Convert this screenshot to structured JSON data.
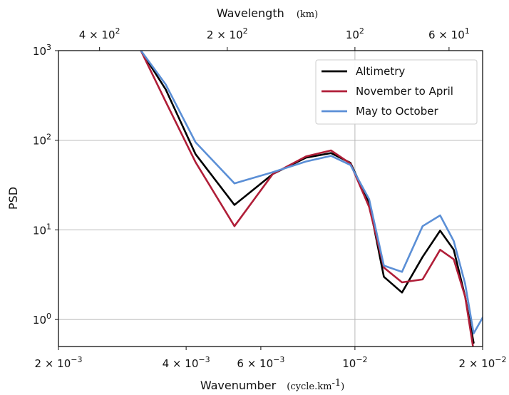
{
  "chart_data": {
    "type": "line",
    "x_scale": "log",
    "y_scale": "log",
    "xlim": [
      0.002,
      0.02
    ],
    "ylim": [
      0.5,
      1000
    ],
    "grid": true,
    "legend_position": "top-right",
    "xlabel": "Wavenumber",
    "xlabel_unit": "(cycle.km",
    "xlabel_unit_sup": "-1",
    "xlabel_unit_end": ")",
    "ylabel": "PSD",
    "top_xlabel": "Wavelength",
    "top_xlabel_unit": "(km)",
    "x_ticks": [
      {
        "value": 0.002,
        "base": "2 × 10",
        "exp": "−3"
      },
      {
        "value": 0.004,
        "base": "4 × 10",
        "exp": "−3"
      },
      {
        "value": 0.006,
        "base": "6 × 10",
        "exp": "−3"
      },
      {
        "value": 0.01,
        "base": "10",
        "exp": "−2"
      },
      {
        "value": 0.02,
        "base": "2 × 10",
        "exp": "−2"
      }
    ],
    "top_x_ticks": [
      {
        "wavelength": 400,
        "base": "4 × 10",
        "exp": "2"
      },
      {
        "wavelength": 200,
        "base": "2 × 10",
        "exp": "2"
      },
      {
        "wavelength": 100,
        "base": "10",
        "exp": "2"
      },
      {
        "wavelength": 60,
        "base": "6 × 10",
        "exp": "1"
      }
    ],
    "y_ticks": [
      {
        "value": 1000,
        "base": "10",
        "exp": "3"
      },
      {
        "value": 100,
        "base": "10",
        "exp": "2"
      },
      {
        "value": 10,
        "base": "10",
        "exp": "1"
      },
      {
        "value": 1,
        "base": "10",
        "exp": "0"
      }
    ],
    "series": [
      {
        "name": "Altimetry",
        "color": "#000000",
        "x": [
          0.00313,
          0.00358,
          0.00421,
          0.0052,
          0.0064,
          0.00767,
          0.00878,
          0.00976,
          0.0108,
          0.0117,
          0.01291,
          0.01444,
          0.01588,
          0.0171,
          0.01819,
          0.01905
        ],
        "y": [
          1000,
          370,
          70,
          19,
          42,
          64,
          72,
          56,
          20,
          3.0,
          2.0,
          5.0,
          9.8,
          6.0,
          1.8,
          0.55
        ]
      },
      {
        "name": "November to April",
        "color": "#b01e38",
        "x": [
          0.00313,
          0.00358,
          0.00421,
          0.0052,
          0.0064,
          0.00767,
          0.00878,
          0.00976,
          0.0108,
          0.0117,
          0.01291,
          0.01444,
          0.01588,
          0.0171,
          0.01819,
          0.01905
        ],
        "y": [
          1000,
          270,
          57,
          11,
          42,
          66,
          77,
          55,
          18,
          3.8,
          2.6,
          2.8,
          6.0,
          4.7,
          1.8,
          0.45
        ]
      },
      {
        "name": "May to October",
        "color": "#5b8fd6",
        "x": [
          0.00313,
          0.00358,
          0.00421,
          0.0052,
          0.0064,
          0.00767,
          0.00878,
          0.00976,
          0.0108,
          0.0117,
          0.01291,
          0.01444,
          0.01588,
          0.0171,
          0.01819,
          0.01905,
          0.02
        ],
        "y": [
          1000,
          420,
          95,
          33,
          44,
          58,
          67,
          53,
          22,
          4.0,
          3.4,
          11.0,
          14.5,
          7.5,
          2.5,
          0.7,
          1.05
        ]
      }
    ]
  }
}
